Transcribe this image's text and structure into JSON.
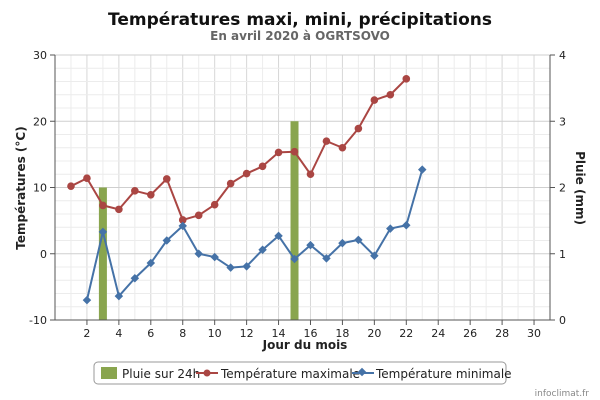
{
  "chart_data": {
    "type": "line",
    "title": "Températures maxi, mini, précipitations",
    "subtitle": "En avril 2020 à OGRTSOVO",
    "xlabel": "Jour du mois",
    "ylabel": "Températures (°C)",
    "y2label": "Pluie (mm)",
    "xlim": [
      0,
      31
    ],
    "ylim": [
      -10,
      30
    ],
    "y2lim": [
      0,
      4
    ],
    "x_ticks": [
      "2",
      "4",
      "6",
      "8",
      "10",
      "12",
      "14",
      "16",
      "18",
      "20",
      "22",
      "24",
      "26",
      "28",
      "30"
    ],
    "y_ticks": [
      "-10",
      "0",
      "10",
      "20",
      "30"
    ],
    "y2_ticks": [
      "0",
      "1",
      "2",
      "3",
      "4"
    ],
    "grid": true,
    "legend_position": "bottom",
    "colors": {
      "rain": "#89A54E",
      "tmax": "#AA4643",
      "tmin": "#4572A7"
    },
    "series": [
      {
        "name": "Pluie sur 24h",
        "type": "bar",
        "axis": "right",
        "x": [
          3,
          15
        ],
        "values": [
          2.0,
          3.0
        ]
      },
      {
        "name": "Température maximale",
        "type": "line",
        "x": [
          1,
          2,
          3,
          4,
          5,
          6,
          7,
          8,
          9,
          10,
          11,
          12,
          13,
          14,
          15,
          16,
          17,
          18,
          19,
          20,
          21,
          22
        ],
        "values": [
          10.2,
          11.4,
          7.3,
          6.7,
          9.5,
          8.9,
          11.3,
          5.1,
          5.8,
          7.4,
          10.6,
          12.1,
          13.2,
          15.3,
          15.4,
          12.0,
          17.0,
          16.0,
          18.9,
          23.2,
          24.0,
          26.4
        ]
      },
      {
        "name": "Température minimale",
        "type": "line",
        "x": [
          2,
          3,
          4,
          5,
          6,
          7,
          8,
          9,
          10,
          11,
          12,
          13,
          14,
          15,
          16,
          17,
          18,
          19,
          20,
          21,
          22,
          23
        ],
        "values": [
          -7.0,
          3.3,
          -6.4,
          -3.7,
          -1.4,
          2.0,
          4.2,
          0.0,
          -0.5,
          -2.1,
          -1.9,
          0.6,
          2.7,
          -0.8,
          1.3,
          -0.7,
          1.6,
          2.1,
          -0.3,
          3.8,
          4.3,
          12.7
        ]
      }
    ]
  },
  "credit": "infoclimat.fr"
}
